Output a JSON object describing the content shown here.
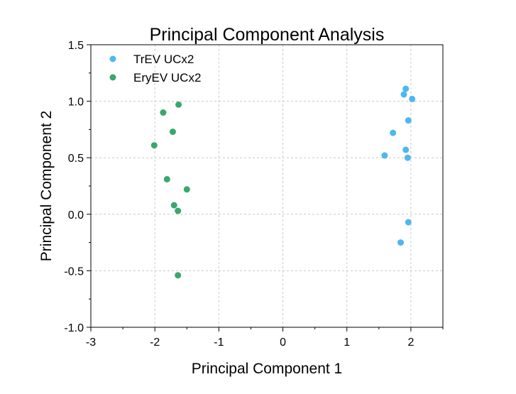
{
  "chart_data": {
    "type": "scatter",
    "title": "Principal Component Analysis",
    "xlabel": "Principal Component 1",
    "ylabel": "Principal Component 2",
    "xlim": [
      -3,
      2.5
    ],
    "ylim": [
      -1.0,
      1.5
    ],
    "xticks": [
      -3,
      -2,
      -1,
      0,
      1,
      2
    ],
    "xtick_labels": [
      "-3",
      "-2",
      "-1",
      "0",
      "1",
      "2"
    ],
    "yticks": [
      -1.0,
      -0.5,
      0.0,
      0.5,
      1.0,
      1.5
    ],
    "ytick_labels": [
      "-1.0",
      "-0.5",
      "0.0",
      "0.5",
      "1.0",
      "1.5"
    ],
    "grid": true,
    "legend_position": "top-left",
    "series": [
      {
        "name": "TrEV UCx2",
        "color": "#4db8ef",
        "points": [
          {
            "x": 1.92,
            "y": 1.11
          },
          {
            "x": 1.89,
            "y": 1.06
          },
          {
            "x": 2.02,
            "y": 1.02
          },
          {
            "x": 1.96,
            "y": 0.83
          },
          {
            "x": 1.72,
            "y": 0.72
          },
          {
            "x": 1.92,
            "y": 0.57
          },
          {
            "x": 1.59,
            "y": 0.52
          },
          {
            "x": 1.95,
            "y": 0.5
          },
          {
            "x": 1.96,
            "y": -0.07
          },
          {
            "x": 1.84,
            "y": -0.25
          }
        ]
      },
      {
        "name": "EryEV UCx2",
        "color": "#3aa76d",
        "points": [
          {
            "x": -1.63,
            "y": 0.97
          },
          {
            "x": -1.87,
            "y": 0.9
          },
          {
            "x": -1.72,
            "y": 0.73
          },
          {
            "x": -2.01,
            "y": 0.61
          },
          {
            "x": -1.81,
            "y": 0.31
          },
          {
            "x": -1.5,
            "y": 0.22
          },
          {
            "x": -1.7,
            "y": 0.08
          },
          {
            "x": -1.64,
            "y": 0.03
          },
          {
            "x": -1.64,
            "y": -0.54
          }
        ]
      }
    ]
  }
}
